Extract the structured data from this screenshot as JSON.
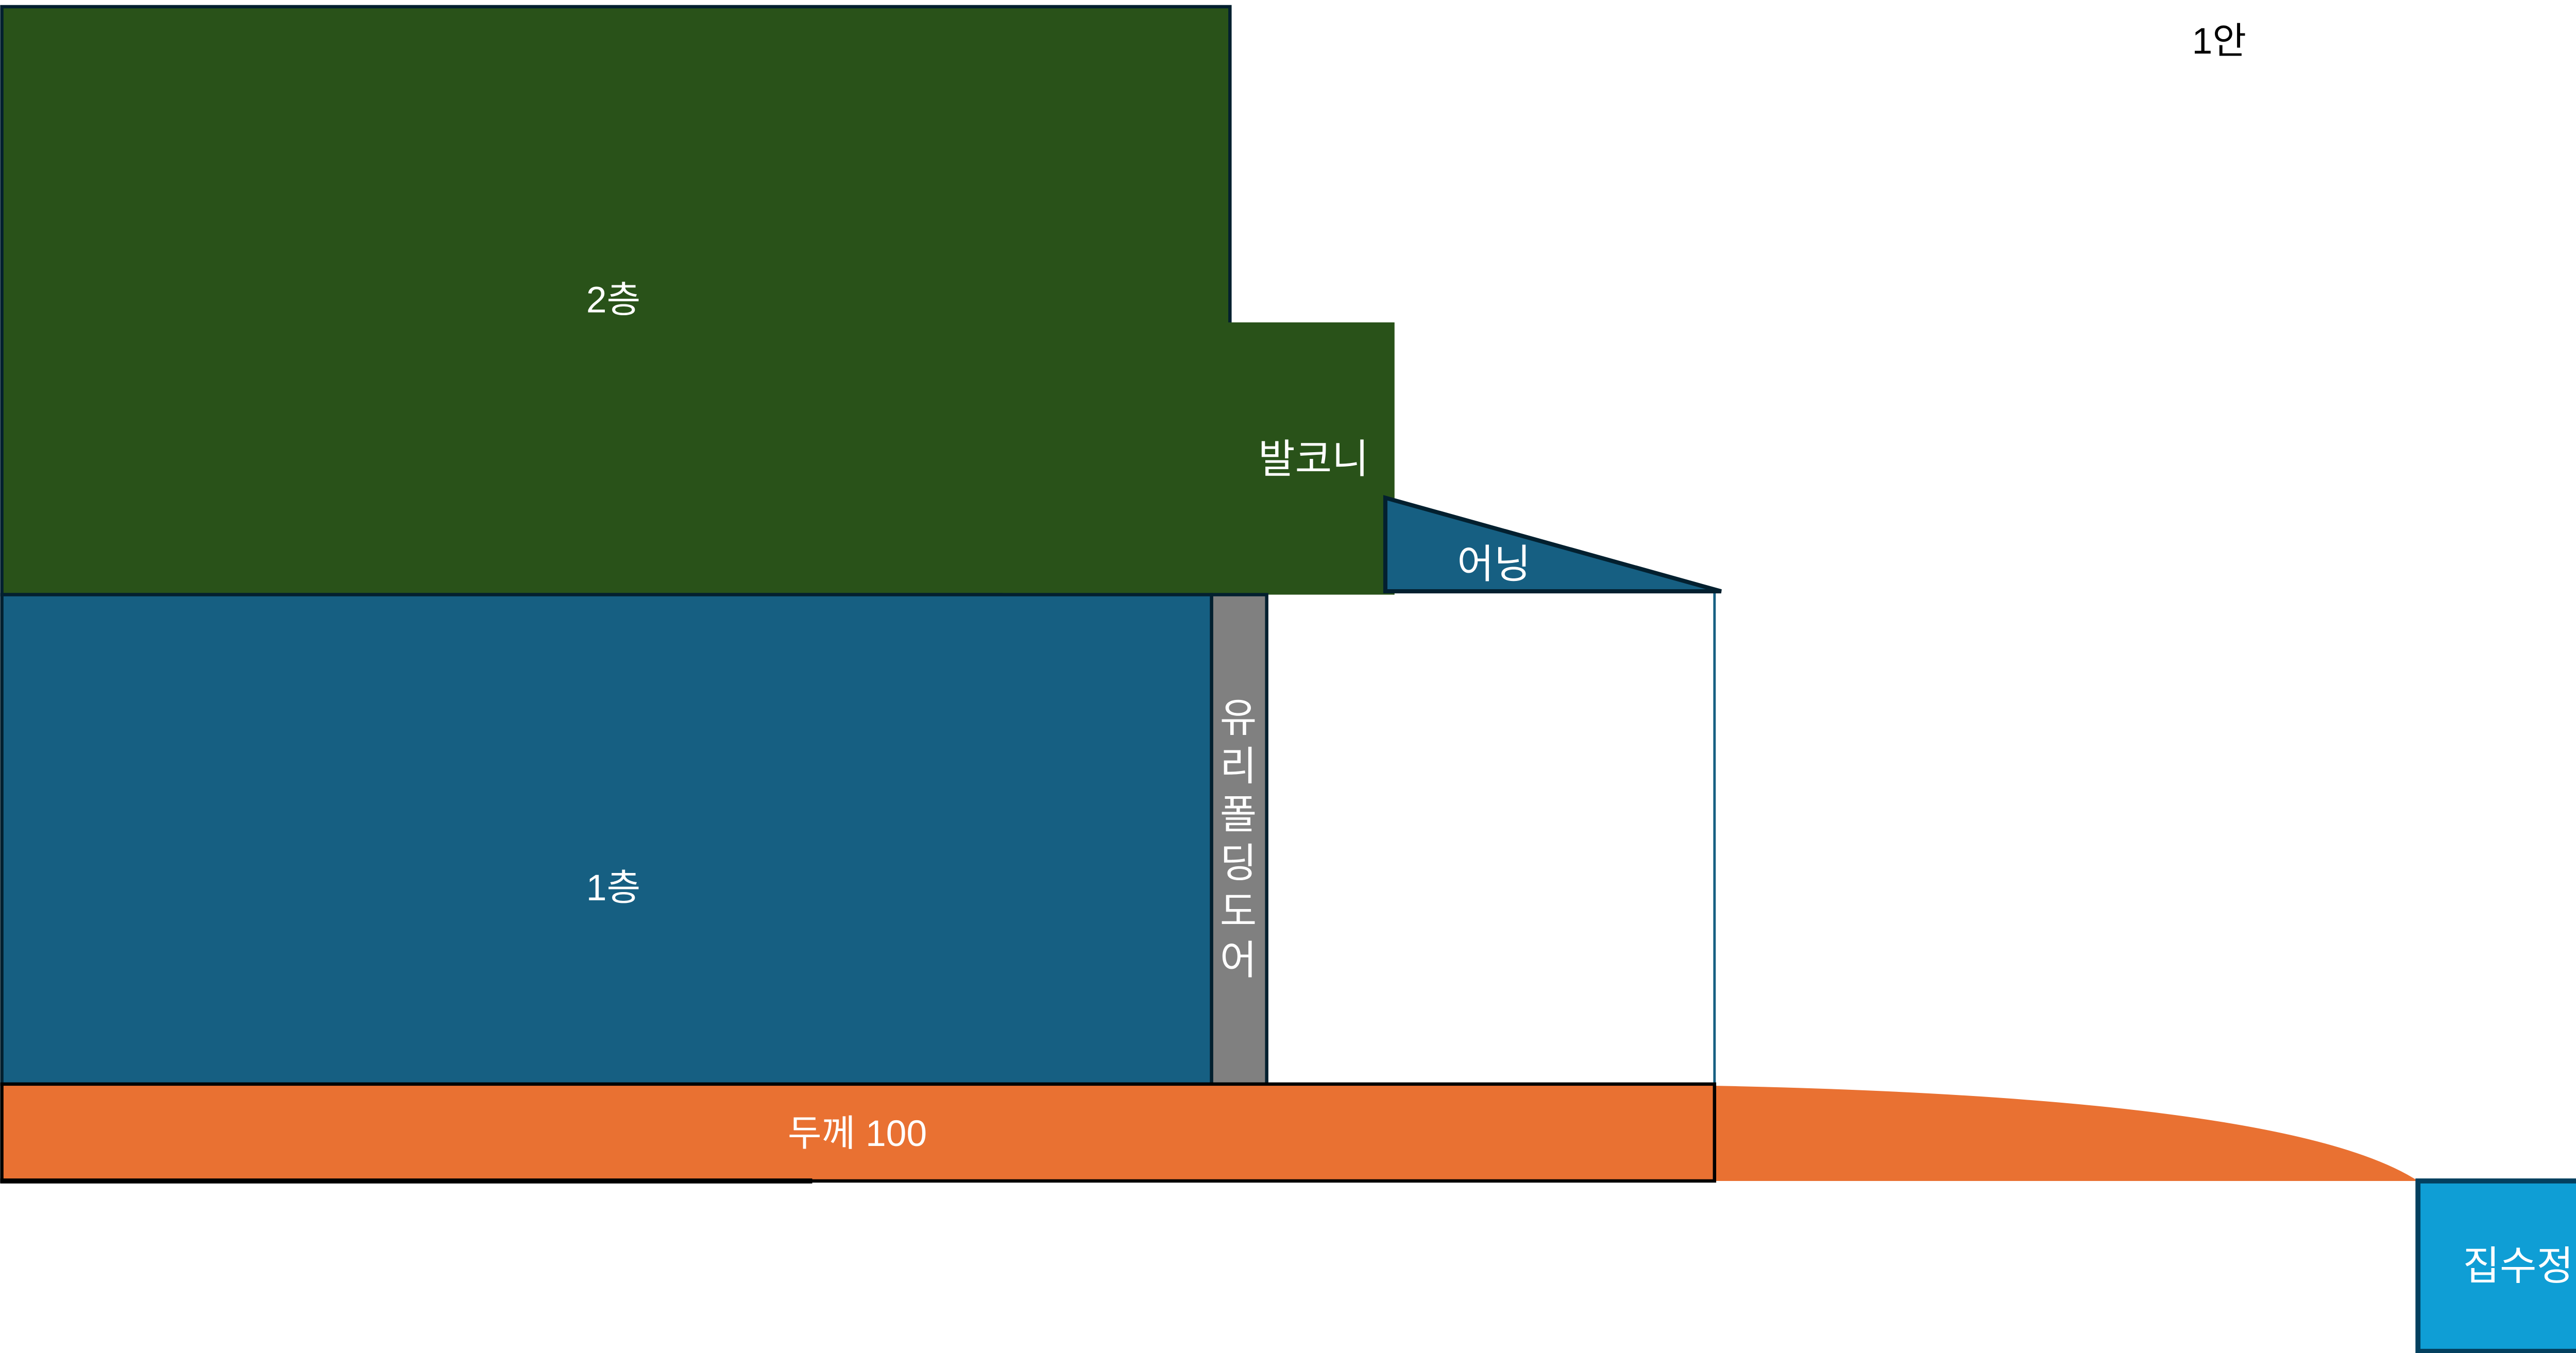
{
  "title": "1안",
  "labels": {
    "floor2": "2층",
    "balcony": "발코니",
    "awning": "어닝",
    "floor1": "1층",
    "glass_door": [
      "유",
      "리",
      "폴",
      "딩",
      "도",
      "어"
    ],
    "slab": "두께 100",
    "catch_basin": "집수정"
  },
  "colors": {
    "floor2": "#295219",
    "floor1": "#165f82",
    "awning": "#165f82",
    "glass_door": "#808080",
    "slab": "#e97132",
    "catch_basin": "#0f9ed5",
    "outline": "#03202f",
    "label_text": "#ffffff",
    "title_text": "#000000"
  }
}
